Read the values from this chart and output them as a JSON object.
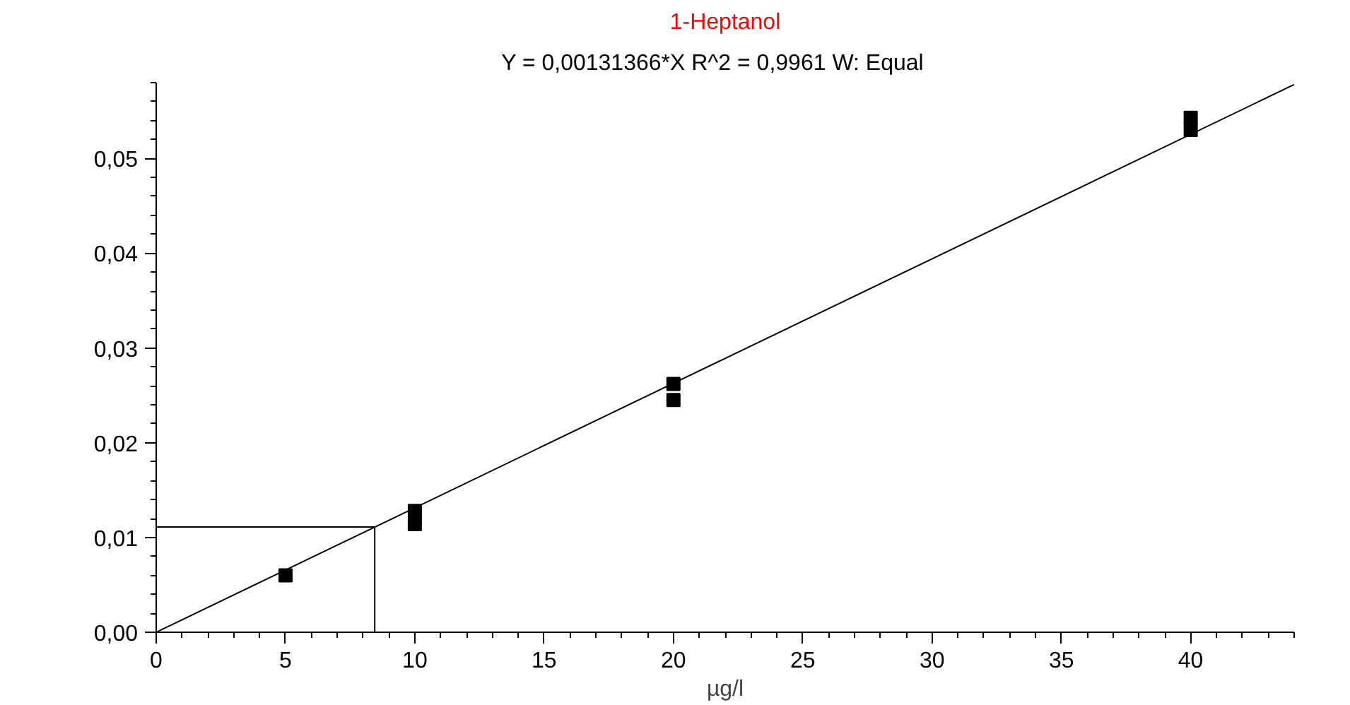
{
  "chart_data": {
    "type": "scatter",
    "title": "1-Heptanol",
    "subtitle": "Y = 0,00131366*X   R^2 = 0,9961   W: Equal",
    "xlabel": "µg/l",
    "series": [
      {
        "color": "#000000",
        "marker": "square",
        "x": [
          5,
          10,
          10,
          20,
          20,
          40,
          40
        ],
        "values": [
          0.006,
          0.0128,
          0.0114,
          0.0262,
          0.0245,
          0.0543,
          0.053
        ]
      },
      {
        "type": "line",
        "color": "#000000",
        "marker": "none",
        "line_style": "solid",
        "x": [
          0,
          44
        ],
        "values": [
          0,
          0.0578
        ]
      },
      {
        "type": "line",
        "color": "#000000",
        "marker": "none",
        "line_style": "solid",
        "x": [
          0,
          8.45,
          8.45
        ],
        "values": [
          0.0111,
          0.0111,
          0
        ]
      }
    ],
    "xlim": [
      0,
      44
    ],
    "ylim": [
      0,
      0.058
    ],
    "xticks": [
      0,
      5,
      10,
      15,
      20,
      25,
      30,
      35,
      40
    ],
    "yticks": [
      {
        "value": 0,
        "label": "0,00"
      },
      {
        "value": 0.01,
        "label": "0,01"
      },
      {
        "value": 0.02,
        "label": "0,02"
      },
      {
        "value": 0.03,
        "label": "0,03"
      },
      {
        "value": 0.04,
        "label": "0,04"
      },
      {
        "value": 0.05,
        "label": "0,05"
      }
    ],
    "grid": false
  }
}
